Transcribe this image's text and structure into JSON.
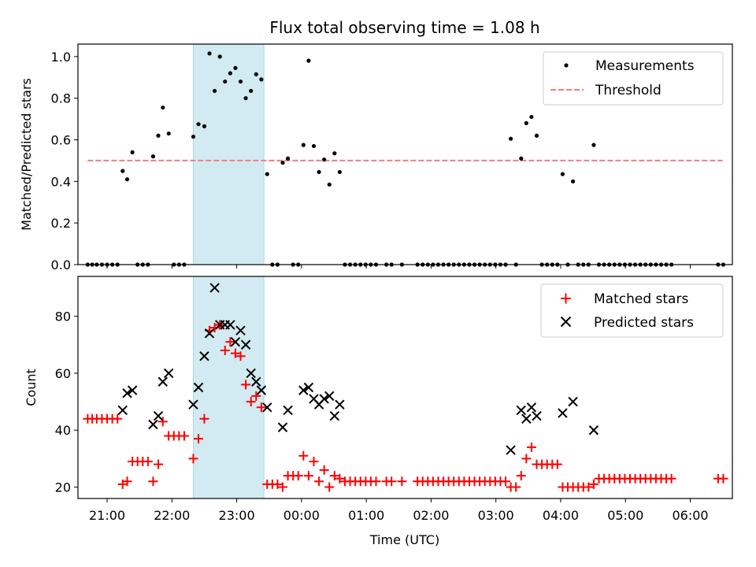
{
  "chart_data": {
    "type": "scatter",
    "title": "Flux total observing time = 1.08 h",
    "xlabel": "Time (UTC)",
    "x_ticks": [
      "21:00",
      "22:00",
      "23:00",
      "00:00",
      "01:00",
      "02:00",
      "03:00",
      "04:00",
      "05:00",
      "06:00"
    ],
    "xlim": [
      -0.45,
      9.65
    ],
    "highlight_span": [
      1.33,
      2.42
    ],
    "highlight_color": "#add8e6",
    "top": {
      "ylabel": "Matched/Predicted stars",
      "ylim": [
        0,
        1.06
      ],
      "y_ticks": [
        0.0,
        0.2,
        0.4,
        0.6,
        0.8,
        1.0
      ],
      "threshold": {
        "name": "Threshold",
        "value": 0.5,
        "x_range": [
          -0.3,
          9.5
        ],
        "color": "#f08080"
      },
      "measurements": {
        "name": "Measurements",
        "color": "#000000",
        "points": [
          [
            -0.3,
            0
          ],
          [
            -0.23,
            0
          ],
          [
            -0.16,
            0
          ],
          [
            -0.08,
            0
          ],
          [
            0.0,
            0
          ],
          [
            0.08,
            0
          ],
          [
            0.16,
            0
          ],
          [
            0.24,
            0.45
          ],
          [
            0.31,
            0.41
          ],
          [
            0.39,
            0.54
          ],
          [
            0.47,
            0
          ],
          [
            0.55,
            0
          ],
          [
            0.63,
            0
          ],
          [
            0.71,
            0.52
          ],
          [
            0.79,
            0.62
          ],
          [
            0.86,
            0.755
          ],
          [
            0.95,
            0.63
          ],
          [
            1.03,
            0
          ],
          [
            1.11,
            0
          ],
          [
            1.19,
            0
          ],
          [
            1.33,
            0.615
          ],
          [
            1.41,
            0.675
          ],
          [
            1.5,
            0.665
          ],
          [
            1.58,
            1.015
          ],
          [
            1.66,
            0.835
          ],
          [
            1.74,
            1.0
          ],
          [
            1.82,
            0.88
          ],
          [
            1.9,
            0.92
          ],
          [
            1.98,
            0.945
          ],
          [
            2.06,
            0.88
          ],
          [
            2.14,
            0.8
          ],
          [
            2.22,
            0.835
          ],
          [
            2.3,
            0.915
          ],
          [
            2.38,
            0.89
          ],
          [
            2.47,
            0.435
          ],
          [
            2.55,
            0
          ],
          [
            2.63,
            0
          ],
          [
            2.71,
            0.49
          ],
          [
            2.79,
            0.51
          ],
          [
            2.87,
            0
          ],
          [
            2.95,
            0
          ],
          [
            3.03,
            0.575
          ],
          [
            3.11,
            0.98
          ],
          [
            3.19,
            0.57
          ],
          [
            3.27,
            0.445
          ],
          [
            3.35,
            0.505
          ],
          [
            3.43,
            0.385
          ],
          [
            3.51,
            0.535
          ],
          [
            3.59,
            0.445
          ],
          [
            3.67,
            0
          ],
          [
            3.75,
            0
          ],
          [
            3.83,
            0
          ],
          [
            3.91,
            0
          ],
          [
            3.99,
            0
          ],
          [
            4.07,
            0
          ],
          [
            4.15,
            0
          ],
          [
            4.31,
            0
          ],
          [
            4.39,
            0
          ],
          [
            4.55,
            0
          ],
          [
            4.79,
            0
          ],
          [
            4.87,
            0
          ],
          [
            4.95,
            0
          ],
          [
            5.03,
            0
          ],
          [
            5.11,
            0
          ],
          [
            5.19,
            0
          ],
          [
            5.27,
            0
          ],
          [
            5.35,
            0
          ],
          [
            5.43,
            0
          ],
          [
            5.51,
            0
          ],
          [
            5.59,
            0
          ],
          [
            5.67,
            0
          ],
          [
            5.75,
            0
          ],
          [
            5.83,
            0
          ],
          [
            5.91,
            0
          ],
          [
            5.99,
            0
          ],
          [
            6.07,
            0
          ],
          [
            6.15,
            0
          ],
          [
            6.23,
            0.605
          ],
          [
            6.31,
            0
          ],
          [
            6.39,
            0.51
          ],
          [
            6.47,
            0.68
          ],
          [
            6.55,
            0.71
          ],
          [
            6.63,
            0.62
          ],
          [
            6.71,
            0
          ],
          [
            6.79,
            0
          ],
          [
            6.87,
            0
          ],
          [
            6.95,
            0
          ],
          [
            7.03,
            0.435
          ],
          [
            7.11,
            0
          ],
          [
            7.19,
            0.4
          ],
          [
            7.27,
            0
          ],
          [
            7.35,
            0
          ],
          [
            7.43,
            0
          ],
          [
            7.51,
            0.575
          ],
          [
            7.59,
            0
          ],
          [
            7.67,
            0
          ],
          [
            7.75,
            0
          ],
          [
            7.83,
            0
          ],
          [
            7.91,
            0
          ],
          [
            7.99,
            0
          ],
          [
            8.07,
            0
          ],
          [
            8.15,
            0
          ],
          [
            8.23,
            0
          ],
          [
            8.31,
            0
          ],
          [
            8.39,
            0
          ],
          [
            8.47,
            0
          ],
          [
            8.55,
            0
          ],
          [
            8.63,
            0
          ],
          [
            8.71,
            0
          ],
          [
            9.43,
            0
          ],
          [
            9.51,
            0
          ]
        ]
      }
    },
    "bottom": {
      "ylabel": "Count",
      "ylim": [
        16,
        94
      ],
      "y_ticks": [
        20,
        40,
        60,
        80
      ],
      "matched": {
        "name": "Matched stars",
        "color": "#ff0000",
        "points": [
          [
            -0.3,
            44
          ],
          [
            -0.23,
            44
          ],
          [
            -0.16,
            44
          ],
          [
            -0.08,
            44
          ],
          [
            0.0,
            44
          ],
          [
            0.08,
            44
          ],
          [
            0.16,
            44
          ],
          [
            0.24,
            21
          ],
          [
            0.31,
            22
          ],
          [
            0.39,
            29
          ],
          [
            0.47,
            29
          ],
          [
            0.55,
            29
          ],
          [
            0.63,
            29
          ],
          [
            0.71,
            22
          ],
          [
            0.79,
            28
          ],
          [
            0.86,
            43
          ],
          [
            0.95,
            38
          ],
          [
            1.03,
            38
          ],
          [
            1.11,
            38
          ],
          [
            1.19,
            38
          ],
          [
            1.33,
            30
          ],
          [
            1.41,
            37
          ],
          [
            1.5,
            44
          ],
          [
            1.58,
            75
          ],
          [
            1.66,
            76
          ],
          [
            1.74,
            77
          ],
          [
            1.82,
            68
          ],
          [
            1.9,
            71
          ],
          [
            1.98,
            67
          ],
          [
            2.06,
            66
          ],
          [
            2.14,
            56
          ],
          [
            2.22,
            50
          ],
          [
            2.3,
            52
          ],
          [
            2.38,
            48
          ],
          [
            2.47,
            21
          ],
          [
            2.55,
            21
          ],
          [
            2.63,
            21
          ],
          [
            2.71,
            20
          ],
          [
            2.79,
            24
          ],
          [
            2.87,
            24
          ],
          [
            2.95,
            24
          ],
          [
            3.03,
            31
          ],
          [
            3.11,
            24
          ],
          [
            3.19,
            29
          ],
          [
            3.27,
            22
          ],
          [
            3.35,
            26
          ],
          [
            3.43,
            20
          ],
          [
            3.51,
            24
          ],
          [
            3.59,
            23
          ],
          [
            3.67,
            22
          ],
          [
            3.75,
            22
          ],
          [
            3.83,
            22
          ],
          [
            3.91,
            22
          ],
          [
            3.99,
            22
          ],
          [
            4.07,
            22
          ],
          [
            4.15,
            22
          ],
          [
            4.31,
            22
          ],
          [
            4.39,
            22
          ],
          [
            4.55,
            22
          ],
          [
            4.79,
            22
          ],
          [
            4.87,
            22
          ],
          [
            4.95,
            22
          ],
          [
            5.03,
            22
          ],
          [
            5.11,
            22
          ],
          [
            5.19,
            22
          ],
          [
            5.27,
            22
          ],
          [
            5.35,
            22
          ],
          [
            5.43,
            22
          ],
          [
            5.51,
            22
          ],
          [
            5.59,
            22
          ],
          [
            5.67,
            22
          ],
          [
            5.75,
            22
          ],
          [
            5.83,
            22
          ],
          [
            5.91,
            22
          ],
          [
            5.99,
            22
          ],
          [
            6.07,
            22
          ],
          [
            6.15,
            22
          ],
          [
            6.23,
            20
          ],
          [
            6.31,
            20
          ],
          [
            6.39,
            24
          ],
          [
            6.47,
            30
          ],
          [
            6.55,
            34
          ],
          [
            6.63,
            28
          ],
          [
            6.71,
            28
          ],
          [
            6.79,
            28
          ],
          [
            6.87,
            28
          ],
          [
            6.95,
            28
          ],
          [
            7.03,
            20
          ],
          [
            7.11,
            20
          ],
          [
            7.19,
            20
          ],
          [
            7.27,
            20
          ],
          [
            7.35,
            20
          ],
          [
            7.43,
            20
          ],
          [
            7.51,
            21
          ],
          [
            7.59,
            23
          ],
          [
            7.67,
            23
          ],
          [
            7.75,
            23
          ],
          [
            7.83,
            23
          ],
          [
            7.91,
            23
          ],
          [
            7.99,
            23
          ],
          [
            8.07,
            23
          ],
          [
            8.15,
            23
          ],
          [
            8.23,
            23
          ],
          [
            8.31,
            23
          ],
          [
            8.39,
            23
          ],
          [
            8.47,
            23
          ],
          [
            8.55,
            23
          ],
          [
            8.63,
            23
          ],
          [
            8.71,
            23
          ],
          [
            9.43,
            23
          ],
          [
            9.51,
            23
          ]
        ]
      },
      "predicted": {
        "name": "Predicted stars",
        "color": "#000000",
        "points": [
          [
            0.24,
            47
          ],
          [
            0.31,
            53
          ],
          [
            0.39,
            54
          ],
          [
            0.71,
            42
          ],
          [
            0.79,
            45
          ],
          [
            0.86,
            57
          ],
          [
            0.95,
            60
          ],
          [
            1.33,
            49
          ],
          [
            1.41,
            55
          ],
          [
            1.5,
            66
          ],
          [
            1.58,
            74
          ],
          [
            1.66,
            90
          ],
          [
            1.74,
            77
          ],
          [
            1.82,
            77
          ],
          [
            1.9,
            77
          ],
          [
            1.98,
            71
          ],
          [
            2.06,
            75
          ],
          [
            2.14,
            70
          ],
          [
            2.22,
            60
          ],
          [
            2.3,
            57
          ],
          [
            2.38,
            54
          ],
          [
            2.47,
            48
          ],
          [
            2.71,
            41
          ],
          [
            2.79,
            47
          ],
          [
            3.03,
            54
          ],
          [
            3.11,
            55
          ],
          [
            3.19,
            51
          ],
          [
            3.27,
            49
          ],
          [
            3.35,
            51
          ],
          [
            3.43,
            52
          ],
          [
            3.51,
            45
          ],
          [
            3.59,
            49
          ],
          [
            6.23,
            33
          ],
          [
            6.39,
            47
          ],
          [
            6.47,
            44
          ],
          [
            6.55,
            48
          ],
          [
            6.63,
            45
          ],
          [
            7.03,
            46
          ],
          [
            7.19,
            50
          ],
          [
            7.51,
            40
          ]
        ]
      }
    }
  }
}
